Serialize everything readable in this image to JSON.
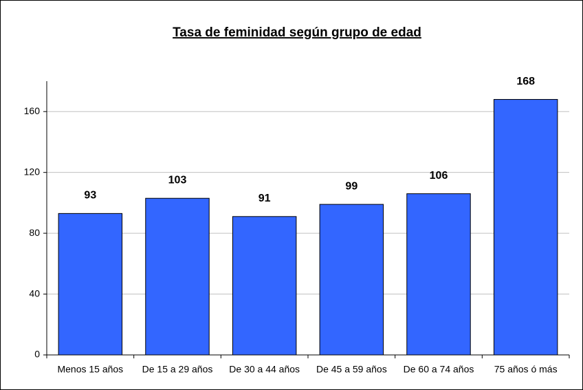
{
  "chart_data": {
    "type": "bar",
    "title": "Tasa de feminidad según grupo de edad",
    "categories": [
      "Menos 15 años",
      "De 15 a 29 años",
      "De 30 a 44 años",
      "De 45 a 59 años",
      "De 60 a 74 años",
      "75 años ó más"
    ],
    "values": [
      93,
      103,
      91,
      99,
      106,
      168
    ],
    "color": "#3366ff",
    "ylim": [
      0,
      180
    ],
    "yticks": [
      0,
      40,
      80,
      120,
      160
    ],
    "grid": true
  }
}
